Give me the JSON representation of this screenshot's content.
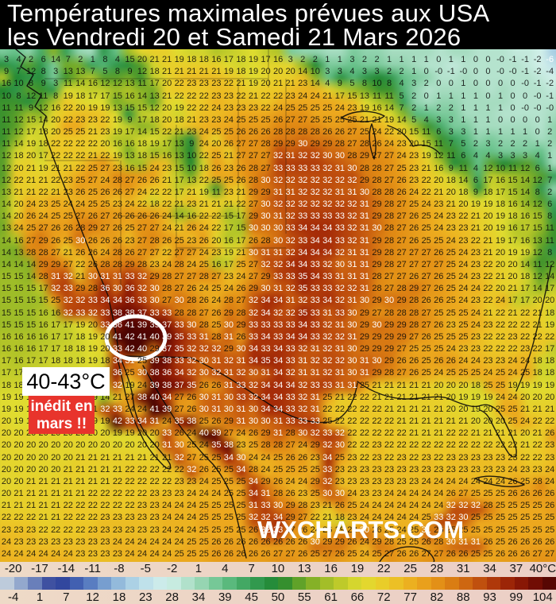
{
  "title": {
    "line1": "Températures maximales prévues aux USA",
    "line2": "les Vendredi 20 et Samedi 21 Mars 2026"
  },
  "map": {
    "annotations": {
      "range_label": "40-43°C",
      "badge_line1": "inédit en",
      "badge_line2": "mars !!",
      "badge_color": "#e8342c",
      "highlight_circle_color": "#ffffff",
      "watermark": "WXCHARTS.COM"
    },
    "grid": {
      "rows": [
        "3 4 2 6 14 7 2 1 8 4 15 20 21 21 19 18 18 16 17 18 19 17 16 3 2 2 1 1 3 2 2 1 1 1 1 0 1 1 0 0 -0 -1 -1 -2 -6",
        "9 7 12 8 3 13 13 7 5 8 9 12 18 21 21 21 21 21 19 18 19 20 20 20 14 10 3 3 4 3 3 2 2 1 0 -0 -1 -0 0 0 -0 -0 -1 -2 -4",
        "16 10 8 9 3 11 14 16 12 12 13 11 17 20 22 23 23 23 22 21 19 20 21 21 23 14 4 9 5 8 10 8 4 3 2 0 0 1 0 0 0 0 -0 -1 -2",
        "10 8 12 11 8 19 18 17 17 15 16 14 13 21 22 22 22 23 23 22 21 22 22 23 24 24 21 17 15 13 11 11 5 2 0 1 1 1 1 0 1 0 0 -0 -1",
        "11 11 9 12 16 22 20 19 19 13 15 15 12 20 19 22 22 24 23 23 23 22 24 25 25 25 25 24 23 19 16 14 7 2 1 2 2 1 1 1 1 0 -0 -0 -0",
        "11 12 15 14 20 22 23 23 22 19 9 17 18 20 18 21 23 23 24 25 25 25 26 27 27 25 25 25 25 21 21 19 14 5 4 3 3 1 1 1 0 0 0 0 1",
        "11 12 17 18 20 25 25 21 23 19 17 14 15 22 21 23 24 25 25 26 26 26 28 28 28 28 26 26 27 25 24 22 20 15 11 6 3 3 1 1 1 1 1 0 2",
        "11 14 19 18 22 22 22 22 20 16 16 18 19 17 13 9 24 20 26 27 27 28 29 29 30 29 29 28 27 28 26 24 23 20 15 11 7 5 2 3 2 2 2 1 2",
        "12 18 20 17 22 22 22 21 22 19 13 18 15 16 13 10 22 25 21 27 27 27 32 31 32 32 30 30 28 29 27 27 24 23 19 12 11 6 4 4 3 3 3 4 1",
        "12 20 21 19 21 21 22 25 27 23 16 15 24 23 15 10 18 26 23 26 28 27 33 33 33 33 32 31 30 28 28 27 25 23 21 16 9 11 4 12 10 11 12 6 1",
        "12 22 21 21 22 23 25 27 24 28 27 26 26 21 17 13 22 25 25 26 28 30 32 32 32 32 32 32 32 29 28 27 26 23 22 20 18 14 6 17 16 15 14 12 7",
        "13 21 21 22 21 23 26 25 26 26 27 24 22 22 17 21 19 11 23 21 29 29 31 31 32 32 32 31 31 30 28 28 26 24 22 21 20 18 9 18 17 15 14 8 2",
        "14 20 24 23 25 24 24 25 25 23 24 22 18 22 21 23 21 21 21 22 27 30 32 32 32 32 32 32 32 31 29 28 27 25 24 23 21 20 19 19 18 16 14 12 6",
        "14 20 26 24 25 25 27 26 27 26 26 26 26 24 14 16 22 22 15 17 29 30 31 32 33 33 33 33 32 31 29 28 27 26 25 24 23 22 21 20 19 18 16 15 8",
        "13 24 25 27 26 26 28 29 27 26 25 27 27 24 21 26 24 22 17 15 30 30 30 33 34 34 34 33 32 31 30 28 27 26 25 24 23 23 21 20 19 16 17 15 11",
        "14 16 27 29 26 25 30 26 26 26 23 27 28 26 25 23 26 20 16 17 26 28 30 32 33 34 34 33 32 31 29 28 27 26 25 25 24 23 22 21 19 17 16 13 11",
        "14 13 28 28 27 21 26 26 24 28 26 27 27 22 27 27 24 23 19 21 30 31 31 32 34 34 34 32 31 31 29 28 27 27 27 26 25 24 23 21 20 19 19 12 8",
        "14 14 14 29 29 27 22 26 28 28 29 28 23 24 28 24 25 16 17 25 27 32 32 34 34 33 32 30 31 31 29 28 27 27 27 27 25 24 23 22 20 20 14 11 12",
        "15 15 14 28 31 32 21 30 31 31 33 32 29 28 27 27 28 27 23 24 27 29 33 33 35 34 33 31 31 31 28 27 27 26 27 26 25 24 23 22 21 20 18 12 14",
        "15 15 15 17 32 33 29 28 36 30 36 32 30 28 27 26 24 25 24 26 29 30 31 32 35 33 33 32 32 31 28 27 28 29 27 26 25 24 24 22 20 21 17 14 17",
        "15 15 15 15 25 32 32 33 34 34 36 33 30 27 30 28 26 24 28 27 32 34 34 31 32 33 34 32 31 30 29 30 29 28 26 26 25 24 23 22 24 17 17 20 20",
        "15 15 15 16 16 32 33 32 33 38 38 37 33 33 28 28 27 26 29 28 32 34 32 32 35 33 31 33 30 29 27 28 28 28 27 25 25 25 24 21 22 21 22 21 18",
        "15 15 15 16 17 17 19 20 33 36 41 39 39 37 33 30 28 25 30 29 33 33 33 33 34 33 32 31 30 29 30 29 29 28 27 26 23 25 24 23 22 22 22 21 19",
        "16 16 16 16 17 17 18 19 20 41 42 41 40 39 35 33 31 28 31 26 33 34 33 34 34 33 32 32 31 29 29 29 29 27 26 25 25 25 23 22 22 23 22 22 22",
        "16 16 16 17 17 18 18 19 20 33 42 40 29 37 35 32 32 32 29 30 34 33 34 33 32 31 32 31 30 29 29 29 27 25 25 25 24 23 23 22 22 22 23 22 17",
        "17 16 17 17 18 18 18 19 18 34 31 25 39 38 33 32 30 31 32 31 34 35 34 33 31 32 32 32 30 31 30 29 26 26 25 26 26 24 24 23 23 24 24 18 18",
        "17 17 17 18 18 18 19 19 21 36 25 30 38 36 34 32 30 32 31 32 30 31 34 32 31 31 32 31 30 31 29 28 27 26 25 24 25 25 25 24 25 24 25 18 18",
        "18 18 18 18 19 19 19 18 18 32 19 24 39 38 37 35 26 26 31 33 32 34 34 34 32 33 33 31 31 25 21 21 21 21 21 20 20 20 18 25 25 19 19 19 19",
        "19 19 19 19 19 19 19 19 14 21 27 38 40 34 27 26 30 31 30 33 32 34 34 33 32 31 25 21 22 22 21 21 21 21 21 21 20 19 19 19 24 24 20 20 20",
        "19 19 19 19 19 19 20 21 32 33 24 24 41 39 27 26 30 31 30 31 30 34 34 33 32 31 22 22 22 22 22 21 21 21 21 21 20 20 19 20 25 25 21 21 21",
        "20 19 19 19 19 19 19 19 19 42 33 34 31 24 35 38 25 26 29 31 30 30 31 33 33 33 25 22 22 22 22 22 21 21 21 21 21 21 20 20 20 25 24 22 22",
        "20 20 20 20 20 20 20 20 20 19 19 20 20 33 26 24 40 39 27 24 26 29 31 28 30 32 33 32 22 22 22 22 22 21 21 21 22 22 21 21 21 21 20 21 26",
        "20 20 20 20 20 20 20 20 20 20 20 20 20 31 30 25 24 35 38 23 25 28 28 27 24 29 32 30 22 22 23 22 22 22 22 22 22 22 22 22 22 22 21 22 23",
        "20 20 20 20 20 20 21 21 21 21 21 21 21 21 32 27 25 25 34 30 24 24 25 26 26 23 34 25 23 22 23 22 23 22 23 22 23 23 23 23 23 23 22 22 23",
        "20 20 20 20 20 21 21 21 21 21 22 22 22 22 22 32 26 25 25 34 28 24 25 25 25 25 33 23 23 23 23 23 23 23 23 23 23 23 23 23 23 24 23 23 24",
        "20 20 21 21 21 21 21 21 21 22 22 22 22 22 23 23 24 25 25 25 34 29 26 24 24 29 32 23 23 23 23 23 23 23 24 24 24 24 24 24 24 26 25 28 24",
        "20 21 21 21 21 21 21 22 22 22 22 22 23 23 23 24 24 24 25 25 34 31 28 26 23 25 30 30 24 23 23 24 24 24 24 24 26 27 25 25 25 26 26 26 26",
        "21 21 21 21 21 22 22 22 22 22 22 23 23 24 24 24 25 25 25 25 31 33 30 29 28 23 21 26 25 24 24 24 24 24 24 24 32 32 32 28 25 25 25 25 26",
        "22 22 22 21 21 22 22 22 23 23 23 23 23 24 24 24 25 25 25 25 32 32 34 29 27 22 21 18 23 24 24 24 24 24 25 33 32 30 25 25 25 25 25 25 25",
        "23 23 23 22 22 22 22 23 23 23 23 23 23 24 24 24 25 25 25 25 26 32 33 27 26 24 26 29 28 30 26 25 24 25 31 26 25 25 25 25 25 25 25 25 25",
        "24 23 23 23 23 23 23 23 23 24 24 24 24 24 24 25 25 26 26 26 26 26 26 26 26 30 29 29 26 24 29 28 25 25 26 28 30 31 31 26 25 26 26 26 26",
        "24 24 24 24 24 24 23 23 23 23 24 24 24 24 25 25 25 26 26 26 26 26 27 27 26 25 27 26 25 24 25 27 26 26 27 27 26 26 25 25 26 26 26 27 27"
      ]
    }
  },
  "colorbar": {
    "unit": "°C",
    "celsius_labels": [
      "-20",
      "-17",
      "-14",
      "-11",
      "-8",
      "-5",
      "-2",
      "1",
      "4",
      "7",
      "10",
      "13",
      "16",
      "19",
      "22",
      "25",
      "28",
      "31",
      "34",
      "37",
      "40°C"
    ],
    "fahrenheit_labels": [
      "-4",
      "1",
      "7",
      "12",
      "18",
      "23",
      "28",
      "34",
      "39",
      "45",
      "50",
      "55",
      "61",
      "66",
      "72",
      "77",
      "82",
      "88",
      "93",
      "99",
      "104"
    ],
    "range": [
      -20,
      40
    ],
    "anchors": [
      [
        -20,
        "#d2dde2"
      ],
      [
        -17,
        "#7e96c6"
      ],
      [
        -14,
        "#2a3a94"
      ],
      [
        -11,
        "#4a6cba"
      ],
      [
        -8,
        "#86aed6"
      ],
      [
        -5,
        "#b8dcea"
      ],
      [
        -2,
        "#d2f0ea"
      ],
      [
        1,
        "#a6dcc0"
      ],
      [
        4,
        "#66c189"
      ],
      [
        7,
        "#379f58"
      ],
      [
        10,
        "#1f8530"
      ],
      [
        13,
        "#76ab27"
      ],
      [
        16,
        "#b2c428"
      ],
      [
        19,
        "#e0dc30"
      ],
      [
        22,
        "#ecc827"
      ],
      [
        25,
        "#eca81e"
      ],
      [
        28,
        "#e08814"
      ],
      [
        31,
        "#c85c10"
      ],
      [
        34,
        "#a62c08"
      ],
      [
        37,
        "#7e1004"
      ],
      [
        40,
        "#4a0402"
      ]
    ]
  }
}
